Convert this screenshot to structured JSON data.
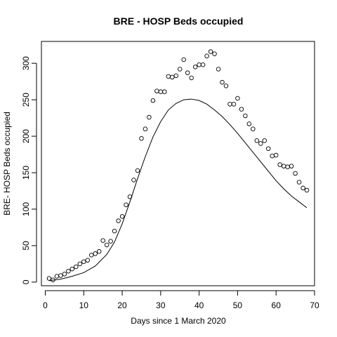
{
  "chart_data": {
    "type": "scatter",
    "title": "BRE - HOSP Beds occupied",
    "xlabel": "Days since 1 March 2020",
    "ylabel": "BRE- HOSP Beds occupied",
    "xlim": [
      -1,
      70
    ],
    "ylim": [
      -5,
      330
    ],
    "xticks": [
      0,
      10,
      20,
      30,
      40,
      50,
      60,
      70
    ],
    "yticks": [
      0,
      50,
      100,
      150,
      200,
      250,
      300
    ],
    "grid": false,
    "legend": "none",
    "series": [
      {
        "kind": "points",
        "x": [
          1,
          2,
          3,
          4,
          5,
          6,
          7,
          8,
          9,
          10,
          11,
          12,
          13,
          14,
          15,
          16,
          17,
          18,
          19,
          20,
          21,
          22,
          23,
          24,
          25,
          26,
          27,
          28,
          29,
          30,
          31,
          32,
          33,
          34,
          35,
          36,
          37,
          38,
          39,
          40,
          41,
          42,
          43,
          44,
          45,
          46,
          47,
          48,
          49,
          50,
          51,
          52,
          53,
          54,
          55,
          56,
          57,
          58,
          59,
          60,
          61,
          62,
          63,
          64,
          65,
          66,
          67,
          68
        ],
        "y": [
          5,
          3,
          8,
          9,
          11,
          15,
          18,
          21,
          25,
          28,
          30,
          37,
          39,
          42,
          57,
          51,
          56,
          70,
          84,
          90,
          106,
          117,
          140,
          153,
          197,
          210,
          226,
          249,
          262,
          261,
          261,
          282,
          281,
          283,
          292,
          305,
          287,
          280,
          295,
          298,
          298,
          310,
          316,
          313,
          292,
          274,
          269,
          244,
          244,
          252,
          237,
          228,
          217,
          210,
          194,
          190,
          194,
          183,
          173,
          174,
          161,
          159,
          158,
          159,
          149,
          137,
          129,
          126
        ]
      },
      {
        "kind": "line",
        "x": [
          1,
          4,
          7,
          10,
          13,
          16,
          18,
          20,
          22,
          24,
          26,
          28,
          30,
          32,
          34,
          36,
          38,
          40,
          42,
          44,
          46,
          48,
          50,
          52,
          54,
          56,
          58,
          60,
          62,
          64,
          66,
          68
        ],
        "y": [
          2,
          4,
          8,
          13,
          22,
          38,
          55,
          80,
          110,
          142,
          172,
          199,
          220,
          236,
          245,
          250,
          251,
          249,
          244,
          236,
          227,
          216,
          204,
          191,
          178,
          165,
          152,
          139,
          128,
          118,
          110,
          102
        ]
      }
    ]
  }
}
